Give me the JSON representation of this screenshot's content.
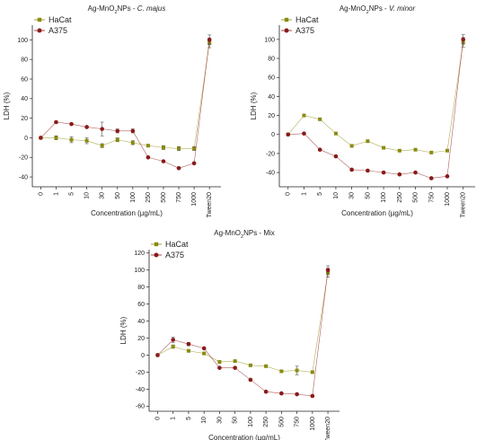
{
  "chart_data": [
    {
      "type": "line",
      "title": "Ag-MnO2NPs - C. majus",
      "title_parts": [
        {
          "text": "Ag-MnO"
        },
        {
          "text": "2",
          "sub": true
        },
        {
          "text": "NPs - "
        },
        {
          "text": "C. majus",
          "italic": true
        }
      ],
      "xlabel": "Concentration (µg/mL)",
      "ylabel": "LDH (%)",
      "categories": [
        "0",
        "1",
        "5",
        "10",
        "30",
        "50",
        "100",
        "250",
        "500",
        "750",
        "1000",
        "Tween20"
      ],
      "yticks": [
        -40,
        -20,
        0,
        20,
        40,
        60,
        80,
        100
      ],
      "ylim": [
        -50,
        115
      ],
      "legend_position": "top-left",
      "series": [
        {
          "name": "HaCat",
          "color": "#8b8b12",
          "marker": "square",
          "values": [
            0,
            0,
            -2,
            -3,
            -8,
            -2,
            -5,
            -8,
            -10,
            -11,
            -11,
            97
          ],
          "errors": [
            0,
            2,
            3,
            3,
            2,
            2,
            2,
            1,
            2,
            2,
            2,
            5
          ]
        },
        {
          "name": "A375",
          "color": "#8b1a1a",
          "marker": "circle",
          "values": [
            0,
            16,
            14,
            11,
            9,
            7,
            7,
            -20,
            -24,
            -31,
            -26,
            100
          ],
          "errors": [
            0,
            1,
            1,
            1,
            7,
            2,
            2,
            1,
            1,
            1,
            1,
            5
          ]
        }
      ]
    },
    {
      "type": "line",
      "title": "Ag-MnO2NPs - V. minor",
      "title_parts": [
        {
          "text": "Ag-MnO"
        },
        {
          "text": "2",
          "sub": true
        },
        {
          "text": "NPs - "
        },
        {
          "text": "V. minor",
          "italic": true
        }
      ],
      "xlabel": "Concentration (µg/mL)",
      "ylabel": "LDH (%)",
      "categories": [
        "0",
        "1",
        "5",
        "10",
        "30",
        "50",
        "100",
        "250",
        "500",
        "750",
        "1000",
        "Tween20"
      ],
      "yticks": [
        -40,
        -20,
        0,
        20,
        40,
        60,
        80,
        100
      ],
      "ylim": [
        -55,
        115
      ],
      "legend_position": "top-left",
      "series": [
        {
          "name": "HaCat",
          "color": "#8b8b12",
          "marker": "square",
          "values": [
            0,
            20,
            16,
            1,
            -12,
            -7,
            -14,
            -17,
            -16,
            -19,
            -17,
            97
          ],
          "errors": [
            0,
            1,
            1,
            1,
            1,
            1,
            1,
            1,
            1,
            1,
            1,
            5
          ]
        },
        {
          "name": "A375",
          "color": "#8b1a1a",
          "marker": "circle",
          "values": [
            0,
            1,
            -16,
            -23,
            -37,
            -38,
            -40,
            -42,
            -40,
            -46,
            -44,
            100
          ],
          "errors": [
            0,
            1,
            1,
            1,
            1,
            1,
            1,
            1,
            1,
            1,
            1,
            5
          ]
        }
      ]
    },
    {
      "type": "line",
      "title": "Ag-MnO2NPs - Mix",
      "title_parts": [
        {
          "text": "Ag-MnO"
        },
        {
          "text": "2",
          "sub": true
        },
        {
          "text": "NPs - Mix"
        }
      ],
      "xlabel": "Concentration (µg/mL)",
      "ylabel": "LDH (%)",
      "categories": [
        "0",
        "1",
        "5",
        "10",
        "30",
        "50",
        "100",
        "250",
        "500",
        "750",
        "1000",
        "Tween20"
      ],
      "yticks": [
        -60,
        -40,
        -20,
        0,
        20,
        40,
        60,
        80,
        100,
        120
      ],
      "ylim": [
        -66,
        124
      ],
      "legend_position": "top-left",
      "series": [
        {
          "name": "HaCat",
          "color": "#8b8b12",
          "marker": "square",
          "values": [
            0,
            10,
            5,
            2,
            -8,
            -7,
            -12,
            -13,
            -19,
            -18,
            -20,
            97
          ],
          "errors": [
            0,
            2,
            1,
            1,
            1,
            1,
            1,
            1,
            1,
            5,
            1,
            5
          ]
        },
        {
          "name": "A375",
          "color": "#8b1a1a",
          "marker": "circle",
          "values": [
            0,
            18,
            13,
            8,
            -15,
            -15,
            -29,
            -43,
            -45,
            -46,
            -48,
            100
          ],
          "errors": [
            0,
            3,
            2,
            1,
            1,
            1,
            1,
            1,
            1,
            1,
            1,
            5
          ]
        }
      ]
    }
  ]
}
